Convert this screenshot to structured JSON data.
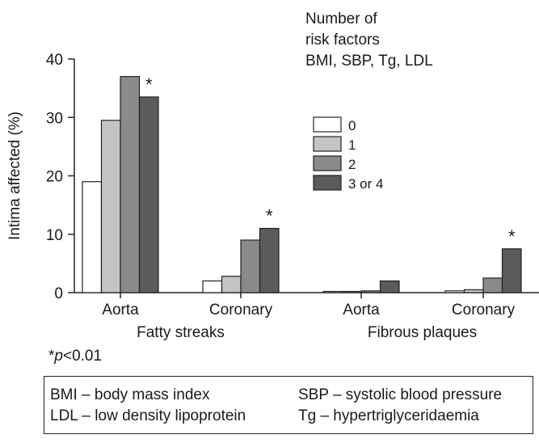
{
  "chart_data": {
    "type": "bar",
    "ylabel": "Intima affected (%)",
    "ylim": [
      0,
      40
    ],
    "yticks": [
      "0",
      "10",
      "20",
      "30",
      "40"
    ],
    "categories": [
      "Aorta",
      "Coronary",
      "Aorta",
      "Coronary"
    ],
    "groups": [
      "Fatty streaks",
      "Fibrous plaques"
    ],
    "legend_title": [
      "Number of",
      "risk factors",
      "BMI, SBP, Tg, LDL"
    ],
    "series": [
      {
        "name": "0",
        "color": "#ffffff",
        "values": [
          19,
          2,
          0.2,
          0.3
        ]
      },
      {
        "name": "1",
        "color": "#c4c4c4",
        "values": [
          29.5,
          2.8,
          0.2,
          0.5
        ]
      },
      {
        "name": "2",
        "color": "#8a8a8a",
        "values": [
          37,
          9,
          0.3,
          2.5
        ]
      },
      {
        "name": "3 or 4",
        "color": "#5b5b5b",
        "values": [
          33.5,
          11,
          2,
          7.5
        ]
      }
    ],
    "significance": [
      "*",
      "*",
      "",
      "*"
    ]
  },
  "footnote": {
    "star": "*",
    "p": "p",
    "rest": "<0.01"
  },
  "abbreviations": {
    "bmi": "BMI – body mass index",
    "sbp": "SBP – systolic blood pressure",
    "ldl": "LDL – low density lipoprotein",
    "tg": "Tg – hypertriglyceridaemia"
  }
}
